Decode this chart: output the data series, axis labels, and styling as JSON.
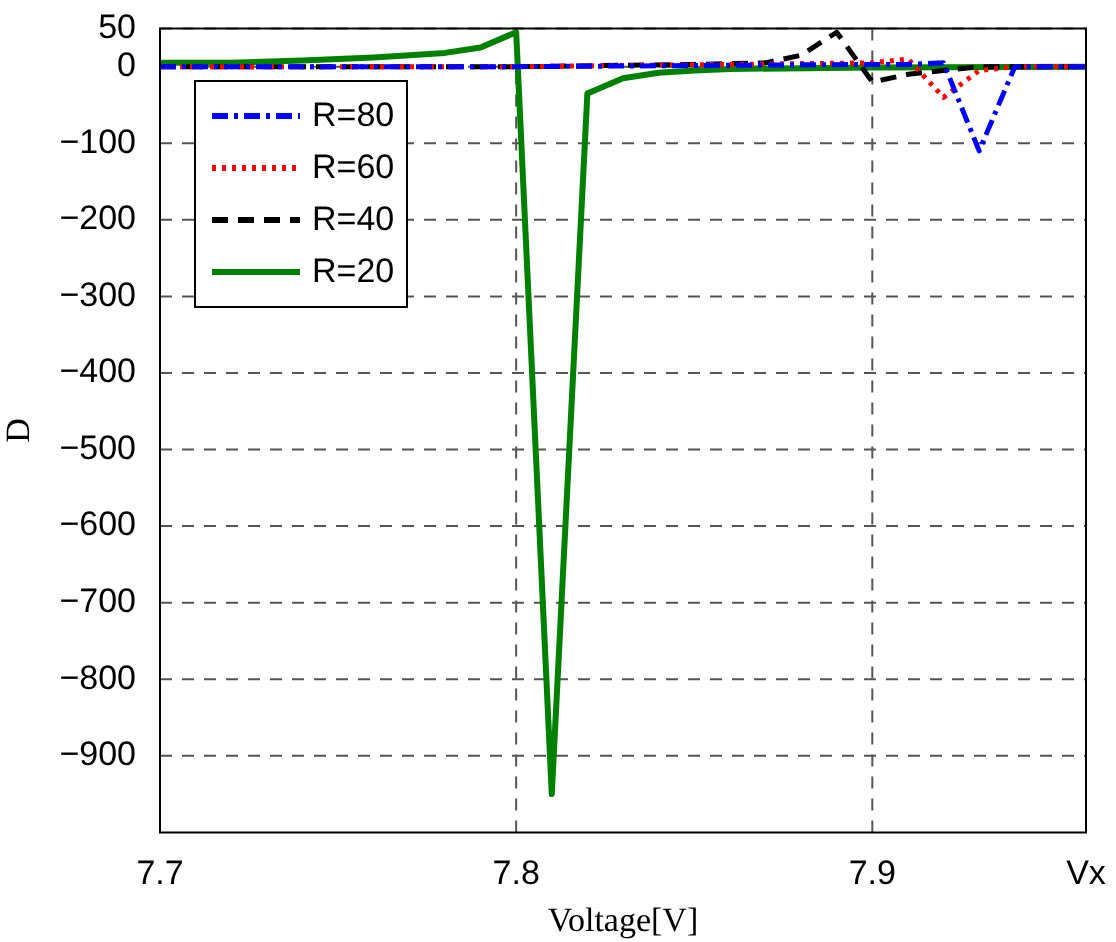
{
  "chart_data": {
    "type": "line",
    "xlabel": "Voltage[V]",
    "ylabel": "D",
    "xlim": [
      7.7,
      7.96
    ],
    "xticks": [
      7.7,
      7.8,
      7.9,
      {
        "value": 7.96,
        "label": "Vx"
      }
    ],
    "ylim": [
      -1000,
      50
    ],
    "yticks": [
      50,
      0,
      -100,
      -200,
      -300,
      -400,
      -500,
      -600,
      -700,
      -800,
      -900
    ],
    "grid": true,
    "legend": "top left",
    "marker": "none",
    "series": [
      {
        "name": "R=80",
        "color": "#0000ff",
        "line_style": "dashdot",
        "x": [
          7.7,
          7.8,
          7.9,
          7.91,
          7.92,
          7.93,
          7.94,
          7.95,
          7.96
        ],
        "values": [
          0,
          0,
          3,
          3,
          5,
          -110,
          0,
          0,
          0
        ]
      },
      {
        "name": "R=60",
        "color": "#ff0000",
        "line_style": "dotted",
        "x": [
          7.7,
          7.8,
          7.9,
          7.91,
          7.92,
          7.93,
          7.94,
          7.95,
          7.96
        ],
        "values": [
          0,
          0,
          5,
          10,
          -40,
          -5,
          0,
          0,
          0
        ]
      },
      {
        "name": "R=40",
        "color": "#000000",
        "line_style": "dashed",
        "x": [
          7.7,
          7.8,
          7.85,
          7.87,
          7.88,
          7.89,
          7.9,
          7.91,
          7.92,
          7.93,
          7.96
        ],
        "values": [
          0,
          0,
          3,
          5,
          15,
          45,
          -20,
          -10,
          -5,
          0,
          0
        ]
      },
      {
        "name": "R=20",
        "color": "#008000",
        "line_style": "solid",
        "x": [
          7.7,
          7.72,
          7.74,
          7.76,
          7.78,
          7.79,
          7.8,
          7.81,
          7.82,
          7.83,
          7.84,
          7.85,
          7.86,
          7.9,
          7.96
        ],
        "values": [
          5,
          5,
          8,
          12,
          18,
          25,
          45,
          -950,
          -35,
          -15,
          -8,
          -5,
          -3,
          -1,
          0
        ]
      }
    ]
  }
}
